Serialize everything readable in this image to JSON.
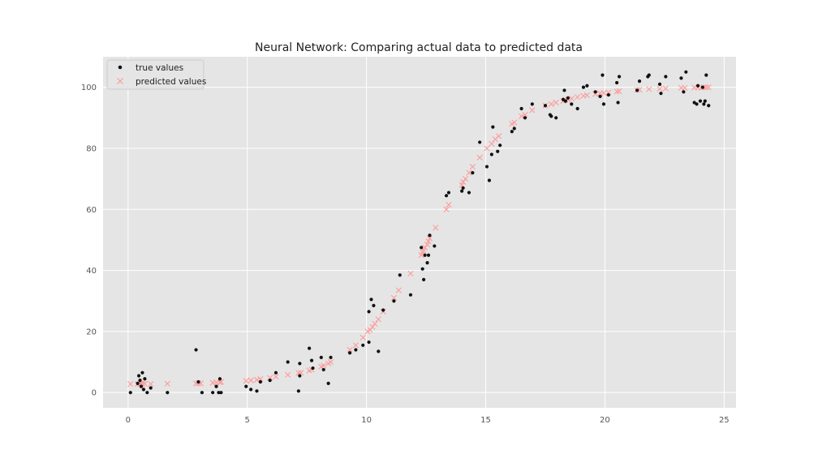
{
  "chart_data": {
    "type": "scatter",
    "title": "Neural Network: Comparing actual data to predicted data",
    "xlabel": "",
    "ylabel": "",
    "xlim": [
      -1.05,
      25.5
    ],
    "ylim": [
      -5,
      110
    ],
    "x_ticks": [
      0,
      5,
      10,
      15,
      20,
      25
    ],
    "y_ticks": [
      0,
      20,
      40,
      60,
      80,
      100
    ],
    "grid": true,
    "legend_position": "top-left",
    "colors": {
      "background": "#e5e5e5",
      "grid": "#ffffff",
      "true_values": "#111111",
      "predicted_values": "#ff9a9a"
    },
    "series": [
      {
        "name": "true values",
        "marker": "dot",
        "points": [
          [
            0.1,
            0
          ],
          [
            0.4,
            3
          ],
          [
            0.45,
            5.5
          ],
          [
            0.5,
            4
          ],
          [
            0.55,
            2
          ],
          [
            0.6,
            6.5
          ],
          [
            0.65,
            1
          ],
          [
            0.7,
            4.5
          ],
          [
            0.8,
            0
          ],
          [
            0.95,
            1.5
          ],
          [
            1.65,
            0
          ],
          [
            2.85,
            14
          ],
          [
            2.95,
            3.5
          ],
          [
            3.1,
            0
          ],
          [
            3.55,
            0
          ],
          [
            3.7,
            2
          ],
          [
            3.8,
            0
          ],
          [
            3.85,
            4.5
          ],
          [
            3.9,
            0
          ],
          [
            4.95,
            2
          ],
          [
            5.15,
            1
          ],
          [
            5.4,
            0.5
          ],
          [
            5.55,
            3.5
          ],
          [
            5.95,
            4
          ],
          [
            6.2,
            6.5
          ],
          [
            6.7,
            10
          ],
          [
            7.15,
            0.5
          ],
          [
            7.2,
            5.5
          ],
          [
            7.2,
            9.5
          ],
          [
            7.6,
            14.5
          ],
          [
            7.7,
            10.5
          ],
          [
            7.75,
            8
          ],
          [
            8.1,
            11.5
          ],
          [
            8.2,
            7.5
          ],
          [
            8.4,
            3
          ],
          [
            8.5,
            11.5
          ],
          [
            9.3,
            13
          ],
          [
            9.55,
            14
          ],
          [
            9.85,
            15.5
          ],
          [
            10.1,
            16.5
          ],
          [
            10.1,
            26.5
          ],
          [
            10.2,
            30.5
          ],
          [
            10.3,
            28.5
          ],
          [
            10.5,
            13.5
          ],
          [
            10.7,
            27
          ],
          [
            11.15,
            30
          ],
          [
            11.4,
            38.5
          ],
          [
            11.85,
            32
          ],
          [
            12.3,
            47.5
          ],
          [
            12.35,
            40.5
          ],
          [
            12.4,
            37
          ],
          [
            12.45,
            45
          ],
          [
            12.55,
            42.5
          ],
          [
            12.6,
            45
          ],
          [
            12.65,
            51.5
          ],
          [
            12.85,
            48
          ],
          [
            13.35,
            64.5
          ],
          [
            13.45,
            65.5
          ],
          [
            14.0,
            66
          ],
          [
            14.05,
            67
          ],
          [
            14.3,
            65.5
          ],
          [
            14.45,
            72
          ],
          [
            14.75,
            82
          ],
          [
            15.05,
            74
          ],
          [
            15.15,
            69.5
          ],
          [
            15.25,
            78
          ],
          [
            15.3,
            87
          ],
          [
            15.5,
            79
          ],
          [
            15.6,
            81
          ],
          [
            16.1,
            85.5
          ],
          [
            16.2,
            86.5
          ],
          [
            16.5,
            93
          ],
          [
            16.65,
            90
          ],
          [
            16.95,
            94.5
          ],
          [
            17.5,
            94
          ],
          [
            17.7,
            91
          ],
          [
            17.75,
            90.5
          ],
          [
            17.95,
            90
          ],
          [
            18.25,
            96
          ],
          [
            18.3,
            99
          ],
          [
            18.35,
            95.5
          ],
          [
            18.45,
            96.5
          ],
          [
            18.6,
            94.5
          ],
          [
            18.85,
            93
          ],
          [
            19.1,
            100
          ],
          [
            19.25,
            100.5
          ],
          [
            19.6,
            98.5
          ],
          [
            19.8,
            97
          ],
          [
            19.9,
            104
          ],
          [
            19.95,
            94.5
          ],
          [
            20.15,
            97.5
          ],
          [
            20.5,
            101.5
          ],
          [
            20.55,
            95
          ],
          [
            20.6,
            103.5
          ],
          [
            21.35,
            99
          ],
          [
            21.45,
            102
          ],
          [
            21.8,
            103.5
          ],
          [
            21.85,
            104
          ],
          [
            22.3,
            101
          ],
          [
            22.35,
            98
          ],
          [
            22.55,
            103.5
          ],
          [
            23.2,
            103
          ],
          [
            23.3,
            98.5
          ],
          [
            23.4,
            105
          ],
          [
            23.75,
            95
          ],
          [
            23.85,
            94.5
          ],
          [
            23.9,
            100.5
          ],
          [
            24.0,
            95.5
          ],
          [
            24.1,
            100
          ],
          [
            24.15,
            94.5
          ],
          [
            24.2,
            95.5
          ],
          [
            24.25,
            104
          ],
          [
            24.35,
            94
          ]
        ]
      },
      {
        "name": "predicted values",
        "marker": "x",
        "points": [
          [
            0.1,
            2.8
          ],
          [
            0.4,
            2.8
          ],
          [
            0.5,
            2.8
          ],
          [
            0.55,
            2.8
          ],
          [
            0.6,
            2.8
          ],
          [
            0.7,
            2.9
          ],
          [
            0.95,
            2.8
          ],
          [
            1.65,
            2.9
          ],
          [
            2.85,
            3
          ],
          [
            2.95,
            3
          ],
          [
            3.05,
            3
          ],
          [
            3.55,
            3.2
          ],
          [
            3.7,
            3.3
          ],
          [
            3.85,
            3.3
          ],
          [
            3.9,
            3.5
          ],
          [
            4.95,
            3.8
          ],
          [
            5.15,
            4
          ],
          [
            5.4,
            4.2
          ],
          [
            5.55,
            4.4
          ],
          [
            5.95,
            4.8
          ],
          [
            6.2,
            5.2
          ],
          [
            6.7,
            5.8
          ],
          [
            7.15,
            6.4
          ],
          [
            7.25,
            6.5
          ],
          [
            7.6,
            7.2
          ],
          [
            7.7,
            7.5
          ],
          [
            8.1,
            8.5
          ],
          [
            8.2,
            8.8
          ],
          [
            8.4,
            9.5
          ],
          [
            8.5,
            10
          ],
          [
            9.3,
            14
          ],
          [
            9.55,
            15.5
          ],
          [
            9.85,
            18
          ],
          [
            10.05,
            20
          ],
          [
            10.15,
            20.5
          ],
          [
            10.25,
            21.5
          ],
          [
            10.35,
            22.5
          ],
          [
            10.5,
            24
          ],
          [
            10.7,
            26.5
          ],
          [
            11.15,
            31
          ],
          [
            11.35,
            33.5
          ],
          [
            11.85,
            39
          ],
          [
            12.3,
            45
          ],
          [
            12.35,
            46
          ],
          [
            12.4,
            46.5
          ],
          [
            12.45,
            47.5
          ],
          [
            12.55,
            48.5
          ],
          [
            12.6,
            49.5
          ],
          [
            12.65,
            50.5
          ],
          [
            12.9,
            54
          ],
          [
            13.35,
            60
          ],
          [
            13.45,
            61.5
          ],
          [
            14.0,
            68
          ],
          [
            14.05,
            69
          ],
          [
            14.15,
            70
          ],
          [
            14.3,
            72
          ],
          [
            14.45,
            74
          ],
          [
            14.75,
            77
          ],
          [
            15.05,
            80
          ],
          [
            15.25,
            81.5
          ],
          [
            15.4,
            83
          ],
          [
            15.55,
            84
          ],
          [
            16.1,
            88
          ],
          [
            16.2,
            88.5
          ],
          [
            16.5,
            90.5
          ],
          [
            16.65,
            91
          ],
          [
            16.95,
            92.5
          ],
          [
            17.5,
            94
          ],
          [
            17.75,
            94.5
          ],
          [
            17.95,
            95
          ],
          [
            18.25,
            95.5
          ],
          [
            18.35,
            95.8
          ],
          [
            18.45,
            96
          ],
          [
            18.6,
            96.3
          ],
          [
            18.85,
            96.8
          ],
          [
            19.1,
            97.2
          ],
          [
            19.25,
            97.4
          ],
          [
            19.6,
            97.8
          ],
          [
            19.8,
            98
          ],
          [
            19.95,
            98.1
          ],
          [
            20.15,
            98.3
          ],
          [
            20.5,
            98.6
          ],
          [
            20.6,
            98.7
          ],
          [
            21.35,
            99.1
          ],
          [
            21.45,
            99.2
          ],
          [
            21.85,
            99.4
          ],
          [
            22.3,
            99.5
          ],
          [
            22.55,
            99.6
          ],
          [
            23.2,
            99.8
          ],
          [
            23.35,
            99.8
          ],
          [
            23.75,
            99.9
          ],
          [
            23.9,
            99.9
          ],
          [
            24.05,
            99.9
          ],
          [
            24.15,
            100
          ],
          [
            24.25,
            100
          ],
          [
            24.35,
            100
          ]
        ]
      }
    ]
  }
}
